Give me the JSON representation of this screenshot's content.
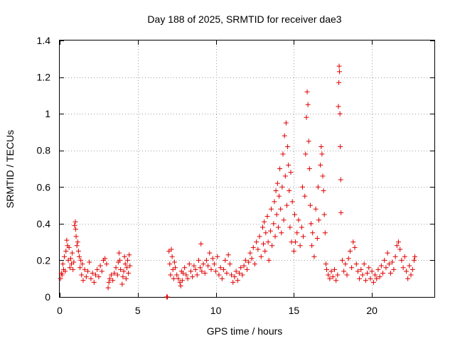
{
  "chart_data": {
    "type": "scatter",
    "title": "Day 188 of 2025, SRMTID for receiver dae3",
    "xlabel": "GPS time / hours",
    "ylabel": "SRMTID / TECUs",
    "xlim": [
      0,
      24
    ],
    "ylim": [
      0,
      1.4
    ],
    "xticks": [
      0,
      5,
      10,
      15,
      20
    ],
    "yticks": [
      0,
      0.2,
      0.4,
      0.6,
      0.8,
      1,
      1.2,
      1.4
    ],
    "xtick_labels": [
      "0",
      "5",
      "10",
      "15",
      "20"
    ],
    "ytick_labels": [
      "0",
      "0.2",
      "0.4",
      "0.6",
      "0.8",
      "1",
      "1.2",
      "1.4"
    ],
    "grid": true,
    "marker": "+",
    "color": "#e00000",
    "series": [
      {
        "name": "SRMTID",
        "points": [
          [
            0.05,
            0.1
          ],
          [
            0.1,
            0.13
          ],
          [
            0.15,
            0.12
          ],
          [
            0.2,
            0.18
          ],
          [
            0.25,
            0.15
          ],
          [
            0.3,
            0.22
          ],
          [
            0.35,
            0.14
          ],
          [
            0.4,
            0.25
          ],
          [
            0.45,
            0.31
          ],
          [
            0.5,
            0.28
          ],
          [
            0.55,
            0.2
          ],
          [
            0.6,
            0.27
          ],
          [
            0.65,
            0.16
          ],
          [
            0.7,
            0.21
          ],
          [
            0.75,
            0.18
          ],
          [
            0.8,
            0.24
          ],
          [
            0.85,
            0.15
          ],
          [
            0.9,
            0.19
          ],
          [
            0.95,
            0.39
          ],
          [
            1.0,
            0.41
          ],
          [
            1.02,
            0.37
          ],
          [
            1.05,
            0.33
          ],
          [
            1.1,
            0.28
          ],
          [
            1.15,
            0.3
          ],
          [
            1.2,
            0.25
          ],
          [
            1.25,
            0.22
          ],
          [
            1.3,
            0.16
          ],
          [
            1.35,
            0.2
          ],
          [
            1.4,
            0.12
          ],
          [
            1.45,
            0.18
          ],
          [
            1.5,
            0.09
          ],
          [
            1.6,
            0.15
          ],
          [
            1.7,
            0.11
          ],
          [
            1.8,
            0.14
          ],
          [
            1.9,
            0.19
          ],
          [
            2.0,
            0.1
          ],
          [
            2.1,
            0.13
          ],
          [
            2.2,
            0.08
          ],
          [
            2.3,
            0.12
          ],
          [
            2.4,
            0.15
          ],
          [
            2.5,
            0.11
          ],
          [
            2.6,
            0.17
          ],
          [
            2.7,
            0.14
          ],
          [
            2.8,
            0.2
          ],
          [
            2.9,
            0.21
          ],
          [
            3.0,
            0.18
          ],
          [
            3.1,
            0.05
          ],
          [
            3.15,
            0.08
          ],
          [
            3.2,
            0.1
          ],
          [
            3.3,
            0.12
          ],
          [
            3.4,
            0.09
          ],
          [
            3.5,
            0.13
          ],
          [
            3.6,
            0.16
          ],
          [
            3.7,
            0.12
          ],
          [
            3.75,
            0.19
          ],
          [
            3.8,
            0.24
          ],
          [
            3.85,
            0.2
          ],
          [
            3.9,
            0.15
          ],
          [
            4.0,
            0.07
          ],
          [
            4.05,
            0.11
          ],
          [
            4.1,
            0.14
          ],
          [
            4.15,
            0.22
          ],
          [
            4.2,
            0.18
          ],
          [
            4.25,
            0.1
          ],
          [
            4.3,
            0.16
          ],
          [
            4.35,
            0.2
          ],
          [
            4.4,
            0.13
          ],
          [
            4.45,
            0.23
          ],
          [
            4.5,
            0.17
          ],
          [
            6.85,
            0.0
          ],
          [
            6.9,
            0.0
          ],
          [
            7.0,
            0.25
          ],
          [
            7.05,
            0.18
          ],
          [
            7.1,
            0.12
          ],
          [
            7.15,
            0.26
          ],
          [
            7.2,
            0.22
          ],
          [
            7.25,
            0.15
          ],
          [
            7.3,
            0.1
          ],
          [
            7.35,
            0.19
          ],
          [
            7.4,
            0.16
          ],
          [
            7.5,
            0.12
          ],
          [
            7.6,
            0.1
          ],
          [
            7.7,
            0.08
          ],
          [
            7.75,
            0.06
          ],
          [
            7.8,
            0.14
          ],
          [
            7.85,
            0.09
          ],
          [
            7.9,
            0.13
          ],
          [
            8.0,
            0.16
          ],
          [
            8.1,
            0.12
          ],
          [
            8.2,
            0.1
          ],
          [
            8.3,
            0.18
          ],
          [
            8.4,
            0.14
          ],
          [
            8.5,
            0.11
          ],
          [
            8.6,
            0.17
          ],
          [
            8.7,
            0.15
          ],
          [
            8.8,
            0.12
          ],
          [
            8.9,
            0.2
          ],
          [
            9.0,
            0.16
          ],
          [
            9.05,
            0.29
          ],
          [
            9.1,
            0.14
          ],
          [
            9.2,
            0.18
          ],
          [
            9.3,
            0.13
          ],
          [
            9.4,
            0.2
          ],
          [
            9.5,
            0.17
          ],
          [
            9.6,
            0.24
          ],
          [
            9.7,
            0.15
          ],
          [
            9.8,
            0.21
          ],
          [
            9.9,
            0.18
          ],
          [
            10.0,
            0.14
          ],
          [
            10.1,
            0.22
          ],
          [
            10.2,
            0.12
          ],
          [
            10.3,
            0.16
          ],
          [
            10.4,
            0.1
          ],
          [
            10.5,
            0.15
          ],
          [
            10.6,
            0.2
          ],
          [
            10.7,
            0.13
          ],
          [
            10.8,
            0.23
          ],
          [
            10.9,
            0.18
          ],
          [
            11.0,
            0.12
          ],
          [
            11.1,
            0.08
          ],
          [
            11.2,
            0.11
          ],
          [
            11.3,
            0.14
          ],
          [
            11.4,
            0.09
          ],
          [
            11.5,
            0.13
          ],
          [
            11.6,
            0.16
          ],
          [
            11.7,
            0.12
          ],
          [
            11.8,
            0.17
          ],
          [
            11.9,
            0.2
          ],
          [
            12.0,
            0.15
          ],
          [
            12.1,
            0.19
          ],
          [
            12.2,
            0.24
          ],
          [
            12.3,
            0.21
          ],
          [
            12.4,
            0.27
          ],
          [
            12.5,
            0.18
          ],
          [
            12.6,
            0.3
          ],
          [
            12.7,
            0.26
          ],
          [
            12.8,
            0.33
          ],
          [
            12.9,
            0.22
          ],
          [
            13.0,
            0.38
          ],
          [
            13.05,
            0.29
          ],
          [
            13.1,
            0.41
          ],
          [
            13.15,
            0.25
          ],
          [
            13.2,
            0.35
          ],
          [
            13.3,
            0.44
          ],
          [
            13.35,
            0.3
          ],
          [
            13.4,
            0.2
          ],
          [
            13.5,
            0.36
          ],
          [
            13.55,
            0.48
          ],
          [
            13.6,
            0.28
          ],
          [
            13.7,
            0.4
          ],
          [
            13.75,
            0.52
          ],
          [
            13.8,
            0.33
          ],
          [
            13.85,
            0.58
          ],
          [
            13.9,
            0.45
          ],
          [
            13.95,
            0.62
          ],
          [
            14.0,
            0.38
          ],
          [
            14.05,
            0.55
          ],
          [
            14.1,
            0.7
          ],
          [
            14.15,
            0.48
          ],
          [
            14.2,
            0.35
          ],
          [
            14.25,
            0.6
          ],
          [
            14.3,
            0.78
          ],
          [
            14.35,
            0.42
          ],
          [
            14.4,
            0.88
          ],
          [
            14.45,
            0.66
          ],
          [
            14.5,
            0.95
          ],
          [
            14.55,
            0.5
          ],
          [
            14.6,
            0.82
          ],
          [
            14.65,
            0.72
          ],
          [
            14.7,
            0.58
          ],
          [
            14.75,
            0.38
          ],
          [
            14.8,
            0.68
          ],
          [
            14.85,
            0.3
          ],
          [
            14.9,
            0.52
          ],
          [
            15.0,
            0.25
          ],
          [
            15.05,
            0.45
          ],
          [
            15.1,
            0.3
          ],
          [
            15.2,
            0.35
          ],
          [
            15.3,
            0.42
          ],
          [
            15.4,
            0.28
          ],
          [
            15.5,
            0.38
          ],
          [
            15.55,
            0.6
          ],
          [
            15.6,
            0.33
          ],
          [
            15.7,
            0.55
          ],
          [
            15.75,
            0.78
          ],
          [
            15.8,
            0.98
          ],
          [
            15.85,
            1.12
          ],
          [
            15.9,
            1.05
          ],
          [
            15.95,
            0.85
          ],
          [
            16.0,
            0.7
          ],
          [
            16.05,
            0.5
          ],
          [
            16.1,
            0.4
          ],
          [
            16.15,
            0.28
          ],
          [
            16.2,
            0.35
          ],
          [
            16.3,
            0.22
          ],
          [
            16.4,
            0.48
          ],
          [
            16.5,
            0.32
          ],
          [
            16.55,
            0.6
          ],
          [
            16.6,
            0.42
          ],
          [
            16.7,
            0.72
          ],
          [
            16.75,
            0.82
          ],
          [
            16.8,
            0.78
          ],
          [
            16.85,
            0.66
          ],
          [
            16.9,
            0.58
          ],
          [
            16.95,
            0.45
          ],
          [
            17.0,
            0.35
          ],
          [
            17.05,
            0.18
          ],
          [
            17.1,
            0.15
          ],
          [
            17.2,
            0.12
          ],
          [
            17.3,
            0.1
          ],
          [
            17.4,
            0.14
          ],
          [
            17.5,
            0.11
          ],
          [
            17.6,
            0.15
          ],
          [
            17.7,
            0.09
          ],
          [
            17.8,
            0.12
          ],
          [
            17.85,
            1.04
          ],
          [
            17.88,
            1.17
          ],
          [
            17.9,
            1.26
          ],
          [
            17.92,
            1.23
          ],
          [
            17.95,
            1.0
          ],
          [
            17.97,
            0.82
          ],
          [
            18.0,
            0.64
          ],
          [
            18.02,
            0.46
          ],
          [
            18.1,
            0.2
          ],
          [
            18.2,
            0.14
          ],
          [
            18.3,
            0.18
          ],
          [
            18.4,
            0.12
          ],
          [
            18.5,
            0.21
          ],
          [
            18.6,
            0.25
          ],
          [
            18.7,
            0.16
          ],
          [
            18.8,
            0.3
          ],
          [
            18.9,
            0.27
          ],
          [
            19.0,
            0.18
          ],
          [
            19.1,
            0.14
          ],
          [
            19.2,
            0.1
          ],
          [
            19.3,
            0.15
          ],
          [
            19.4,
            0.12
          ],
          [
            19.5,
            0.18
          ],
          [
            19.6,
            0.09
          ],
          [
            19.7,
            0.13
          ],
          [
            19.8,
            0.16
          ],
          [
            19.9,
            0.1
          ],
          [
            20.0,
            0.14
          ],
          [
            20.1,
            0.08
          ],
          [
            20.2,
            0.12
          ],
          [
            20.3,
            0.1
          ],
          [
            20.4,
            0.15
          ],
          [
            20.5,
            0.11
          ],
          [
            20.6,
            0.17
          ],
          [
            20.7,
            0.13
          ],
          [
            20.8,
            0.2
          ],
          [
            20.9,
            0.16
          ],
          [
            21.0,
            0.24
          ],
          [
            21.1,
            0.18
          ],
          [
            21.2,
            0.13
          ],
          [
            21.3,
            0.19
          ],
          [
            21.4,
            0.15
          ],
          [
            21.5,
            0.22
          ],
          [
            21.6,
            0.28
          ],
          [
            21.7,
            0.3
          ],
          [
            21.8,
            0.26
          ],
          [
            21.9,
            0.2
          ],
          [
            22.0,
            0.16
          ],
          [
            22.1,
            0.22
          ],
          [
            22.2,
            0.14
          ],
          [
            22.3,
            0.1
          ],
          [
            22.4,
            0.17
          ],
          [
            22.5,
            0.12
          ],
          [
            22.6,
            0.15
          ],
          [
            22.7,
            0.2
          ],
          [
            22.75,
            0.22
          ]
        ]
      }
    ]
  }
}
